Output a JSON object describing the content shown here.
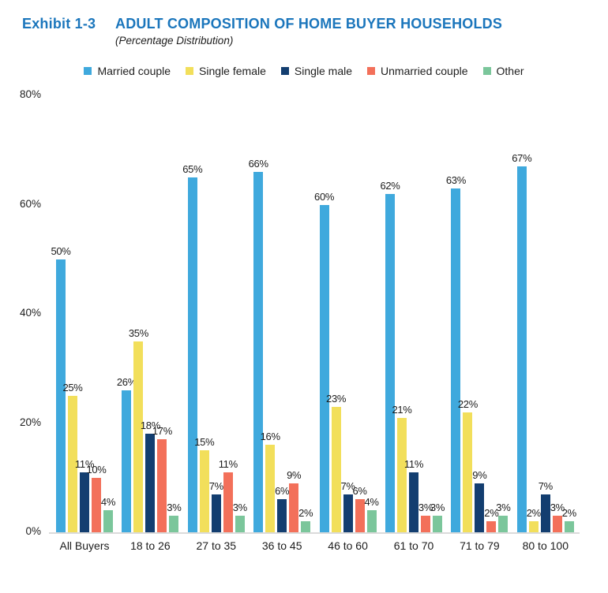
{
  "header": {
    "exhibit": "Exhibit 1-3",
    "title": "ADULT COMPOSITION OF HOME BUYER HOUSEHOLDS",
    "subtitle": "(Percentage Distribution)"
  },
  "colors": {
    "title_blue": "#1B76BC",
    "axis_text": "#1E1E1E",
    "baseline_gray": "#DBDBDB"
  },
  "chart_data": {
    "type": "bar",
    "title": "ADULT COMPOSITION OF HOME BUYER HOUSEHOLDS",
    "subtitle": "(Percentage Distribution)",
    "categories": [
      "All Buyers",
      "18 to 26",
      "27 to 35",
      "36 to 45",
      "46 to 60",
      "61 to 70",
      "71 to 79",
      "80 to 100"
    ],
    "series": [
      {
        "name": "Married couple",
        "color": "#3FA9DD",
        "values": [
          50,
          26,
          65,
          66,
          60,
          62,
          63,
          67
        ]
      },
      {
        "name": "Single female",
        "color": "#F2DF5B",
        "values": [
          25,
          35,
          15,
          16,
          23,
          21,
          22,
          2
        ]
      },
      {
        "name": "Single male",
        "color": "#133E70",
        "values": [
          11,
          18,
          7,
          6,
          7,
          11,
          9,
          7
        ]
      },
      {
        "name": "Unmarried couple",
        "color": "#F3705A",
        "values": [
          10,
          17,
          11,
          9,
          6,
          3,
          2,
          3
        ]
      },
      {
        "name": "Other",
        "color": "#7BC69B",
        "values": [
          4,
          3,
          3,
          2,
          4,
          3,
          3,
          2
        ]
      }
    ],
    "y_ticks": [
      "80%",
      "60%",
      "40%",
      "20%",
      "0%"
    ],
    "ylim": [
      0,
      80
    ],
    "value_suffix": "%",
    "legend_position": "top",
    "grid": false,
    "xlabel": "",
    "ylabel": ""
  }
}
